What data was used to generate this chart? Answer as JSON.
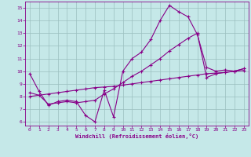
{
  "xlabel": "Windchill (Refroidissement éolien,°C)",
  "xlim": [
    -0.5,
    23.5
  ],
  "ylim": [
    5.7,
    15.5
  ],
  "yticks": [
    6,
    7,
    8,
    9,
    10,
    11,
    12,
    13,
    14,
    15
  ],
  "xticks": [
    0,
    1,
    2,
    3,
    4,
    5,
    6,
    7,
    8,
    9,
    10,
    11,
    12,
    13,
    14,
    15,
    16,
    17,
    18,
    19,
    20,
    21,
    22,
    23
  ],
  "bg_color": "#c5e8e8",
  "line_color": "#880088",
  "grid_color": "#9bbfbf",
  "line1_x": [
    0,
    1,
    2,
    3,
    4,
    5,
    6,
    7,
    8,
    9,
    10,
    11,
    12,
    13,
    14,
    15,
    16,
    17,
    18,
    19,
    20,
    21,
    22,
    23
  ],
  "line1_y": [
    9.8,
    8.4,
    7.3,
    7.6,
    7.7,
    7.6,
    6.5,
    6.0,
    8.5,
    6.4,
    10.0,
    11.0,
    11.5,
    12.5,
    14.0,
    15.2,
    14.7,
    14.3,
    12.9,
    10.3,
    10.0,
    10.1,
    10.0,
    10.2
  ],
  "line2_x": [
    0,
    1,
    2,
    3,
    4,
    5,
    6,
    7,
    8,
    9,
    10,
    11,
    12,
    13,
    14,
    15,
    16,
    17,
    18,
    19,
    20,
    21,
    22,
    23
  ],
  "line2_y": [
    8.3,
    8.1,
    7.4,
    7.5,
    7.6,
    7.5,
    7.6,
    7.7,
    8.2,
    8.6,
    9.1,
    9.6,
    10.0,
    10.5,
    11.0,
    11.6,
    12.1,
    12.6,
    13.0,
    9.5,
    9.8,
    9.9,
    10.0,
    10.2
  ],
  "line3_x": [
    0,
    1,
    2,
    3,
    4,
    5,
    6,
    7,
    8,
    9,
    10,
    11,
    12,
    13,
    14,
    15,
    16,
    17,
    18,
    19,
    20,
    21,
    22,
    23
  ],
  "line3_y": [
    8.0,
    8.1,
    8.2,
    8.3,
    8.4,
    8.5,
    8.6,
    8.7,
    8.75,
    8.8,
    8.9,
    9.0,
    9.1,
    9.2,
    9.3,
    9.4,
    9.5,
    9.6,
    9.7,
    9.8,
    9.85,
    9.9,
    10.0,
    10.05
  ]
}
